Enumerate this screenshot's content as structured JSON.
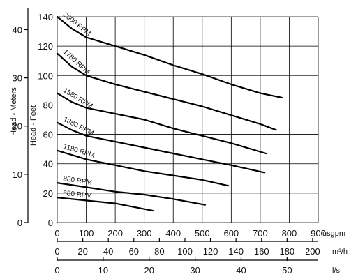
{
  "chart_data": {
    "type": "line",
    "title": "",
    "ylabel_left": "Head - Meters",
    "ylabel_right": "Head - Feet",
    "x_axes": [
      {
        "unit": "usgpm",
        "ticks": [
          "0",
          "100",
          "200",
          "300",
          "400",
          "500",
          "600",
          "700",
          "800",
          "900"
        ]
      },
      {
        "unit": "m³/h",
        "ticks": [
          "0",
          "20",
          "40",
          "60",
          "80",
          "100",
          "120",
          "140",
          "160",
          "180",
          "200"
        ]
      },
      {
        "unit": "l/s",
        "ticks": [
          "0",
          "10",
          "20",
          "30",
          "40",
          "50"
        ]
      }
    ],
    "y_meters_ticks": [
      "0",
      "10",
      "20",
      "30",
      "40"
    ],
    "y_feet_ticks": [
      "0",
      "20",
      "40",
      "60",
      "80",
      "100",
      "120",
      "140"
    ],
    "xlim": [
      0,
      900
    ],
    "ylim_feet": [
      0,
      140
    ],
    "grid": true,
    "series": [
      {
        "name": "2000 RPM",
        "x": [
          0,
          50,
          100,
          150,
          200,
          300,
          400,
          500,
          600,
          700,
          775
        ],
        "y": [
          140,
          132,
          126,
          123,
          120,
          114,
          107,
          101,
          94,
          88,
          85
        ]
      },
      {
        "name": "1780 RPM",
        "x": [
          0,
          50,
          100,
          200,
          300,
          400,
          500,
          600,
          700,
          755
        ],
        "y": [
          115,
          106,
          100,
          94,
          89,
          84,
          79,
          73,
          67,
          63
        ]
      },
      {
        "name": "1580 RPM",
        "x": [
          0,
          50,
          100,
          200,
          300,
          400,
          500,
          600,
          720
        ],
        "y": [
          88,
          82,
          78,
          74,
          70,
          64,
          59,
          54,
          47
        ]
      },
      {
        "name": "1380 RPM",
        "x": [
          0,
          50,
          100,
          200,
          300,
          400,
          500,
          600,
          715
        ],
        "y": [
          68,
          63,
          59,
          55,
          51,
          47,
          43,
          39,
          34
        ]
      },
      {
        "name": "1180 RPM",
        "x": [
          0,
          50,
          100,
          200,
          300,
          400,
          500,
          590
        ],
        "y": [
          49,
          46,
          43,
          39,
          35,
          32,
          29,
          25
        ]
      },
      {
        "name": "880 RPM",
        "x": [
          0,
          100,
          200,
          300,
          400,
          510
        ],
        "y": [
          27,
          24,
          21,
          19,
          16,
          12
        ]
      },
      {
        "name": "680 RPM",
        "x": [
          0,
          100,
          200,
          330
        ],
        "y": [
          17,
          15,
          13,
          8
        ]
      }
    ]
  }
}
